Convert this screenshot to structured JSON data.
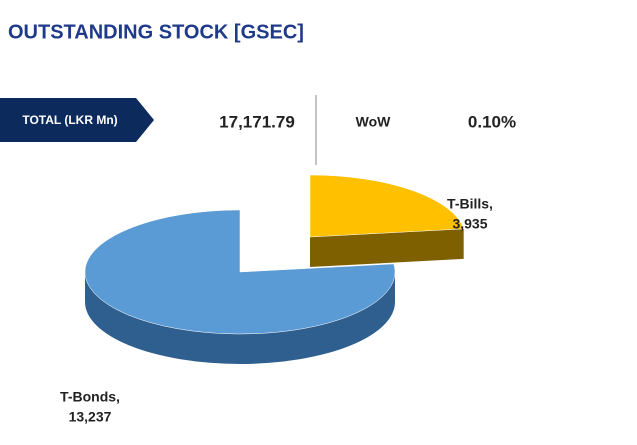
{
  "header": {
    "title": "OUTSTANDING STOCK [GSEC]",
    "total_label": "TOTAL (LKR Mn)",
    "total_value": "17,171.79",
    "change_label": "WoW",
    "change_value": "0.10%"
  },
  "chart_data": {
    "type": "pie",
    "categories": [
      "T-Bills,",
      "T-Bonds,"
    ],
    "values": [
      3935,
      13237
    ],
    "value_labels": [
      "3,935",
      "13,237"
    ],
    "colors": [
      "#FFC000",
      "#5B9BD5"
    ],
    "side_colors": [
      "#7F6000",
      "#2F5F8F"
    ],
    "three_d": true
  }
}
